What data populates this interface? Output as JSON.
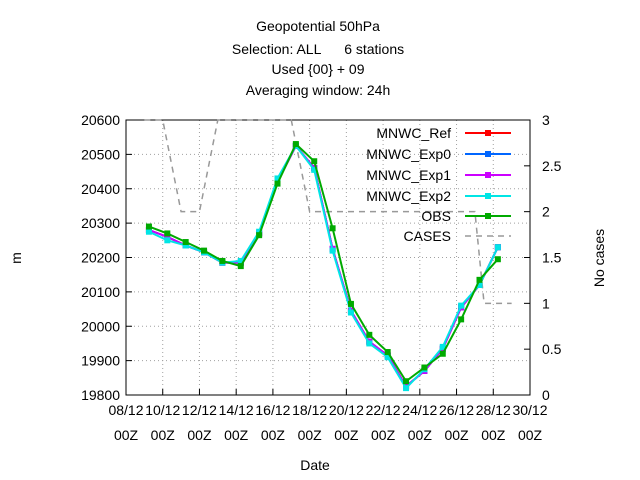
{
  "chart_data": {
    "type": "line",
    "title_lines": [
      "Geopotential 50hPa",
      "Selection: ALL      6 stations",
      "Used {00} + 09",
      "Averaging window: 24h"
    ],
    "xlabel": "Date",
    "ylabel": "m",
    "y2label": "No cases",
    "ylim": [
      19800,
      20600
    ],
    "y2lim": [
      0,
      3
    ],
    "yticks": [
      "19800",
      "19900",
      "20000",
      "20100",
      "20200",
      "20300",
      "20400",
      "20500",
      "20600"
    ],
    "y2ticks": [
      "0",
      "0.5",
      "1",
      "1.5",
      "2",
      "2.5",
      "3"
    ],
    "xticks": [
      {
        "day": 8,
        "line1": "08/12",
        "line2": "00Z"
      },
      {
        "day": 10,
        "line1": "10/12",
        "line2": "00Z"
      },
      {
        "day": 12,
        "line1": "12/12",
        "line2": "00Z"
      },
      {
        "day": 14,
        "line1": "14/12",
        "line2": "00Z"
      },
      {
        "day": 16,
        "line1": "16/12",
        "line2": "00Z"
      },
      {
        "day": 18,
        "line1": "18/12",
        "line2": "00Z"
      },
      {
        "day": 20,
        "line1": "20/12",
        "line2": "00Z"
      },
      {
        "day": 22,
        "line1": "22/12",
        "line2": "00Z"
      },
      {
        "day": 24,
        "line1": "24/12",
        "line2": "00Z"
      },
      {
        "day": 26,
        "line1": "26/12",
        "line2": "00Z"
      },
      {
        "day": 28,
        "line1": "28/12",
        "line2": "00Z"
      },
      {
        "day": 30,
        "line1": "30/12",
        "line2": "00Z"
      }
    ],
    "xlim_days": [
      8,
      30
    ],
    "grid": true,
    "legend_position": "top-right",
    "x": [
      9.25,
      10.25,
      11.25,
      12.25,
      13.25,
      14.25,
      15.25,
      16.25,
      17.25,
      18.25,
      19.25,
      20.25,
      21.25,
      22.25,
      23.25,
      24.25,
      25.25,
      26.25,
      27.25,
      28.25,
      29.25
    ],
    "series": [
      {
        "name": "MNWC_Ref",
        "color": "#ff0000",
        "axis": "y1",
        "values": [
          20280,
          20260,
          20235,
          20215,
          20185,
          20185,
          20270,
          20420,
          20525,
          20460,
          20225,
          20045,
          19955,
          19915,
          19825,
          19870,
          19935,
          20055,
          20120,
          20230,
          null
        ]
      },
      {
        "name": "MNWC_Exp0",
        "color": "#0066ff",
        "axis": "y1",
        "values": [
          20280,
          20260,
          20235,
          20215,
          20185,
          20185,
          20270,
          20420,
          20525,
          20460,
          20225,
          20045,
          19955,
          19915,
          19825,
          19870,
          19935,
          20055,
          20120,
          20230,
          null
        ]
      },
      {
        "name": "MNWC_Exp1",
        "color": "#cc00ff",
        "axis": "y1",
        "values": [
          20280,
          20260,
          20235,
          20215,
          20185,
          20185,
          20270,
          20420,
          20525,
          20460,
          20225,
          20045,
          19955,
          19915,
          19825,
          19870,
          19935,
          20055,
          20120,
          20230,
          null
        ]
      },
      {
        "name": "MNWC_Exp2",
        "color": "#00e5e5",
        "axis": "y1",
        "values": [
          20275,
          20250,
          20235,
          20215,
          20185,
          20190,
          20275,
          20430,
          20525,
          20455,
          20220,
          20040,
          19950,
          19910,
          19820,
          19875,
          19940,
          20060,
          20120,
          20230,
          null
        ]
      },
      {
        "name": "OBS",
        "color": "#00aa00",
        "axis": "y1",
        "values": [
          20290,
          20270,
          20245,
          20220,
          20190,
          20175,
          20265,
          20415,
          20530,
          20480,
          20285,
          20065,
          19975,
          19925,
          19840,
          19880,
          19920,
          20020,
          20135,
          20195,
          null
        ]
      },
      {
        "name": "CASES",
        "color": "#999999",
        "axis": "y2",
        "dashed": true,
        "x": [
          9,
          10,
          10.5,
          11,
          11.5,
          12,
          12.5,
          13,
          13.5,
          14,
          15,
          16,
          17,
          18,
          18.5,
          19,
          20,
          21,
          22,
          23,
          24,
          25,
          26,
          27,
          27.5,
          28,
          29
        ],
        "values": [
          3,
          3,
          2.5,
          2,
          2,
          2,
          2.5,
          3,
          3,
          3,
          3,
          3,
          3,
          2,
          2,
          2,
          2,
          2,
          2,
          2,
          2,
          2,
          2,
          2,
          1,
          1,
          1
        ]
      }
    ]
  }
}
